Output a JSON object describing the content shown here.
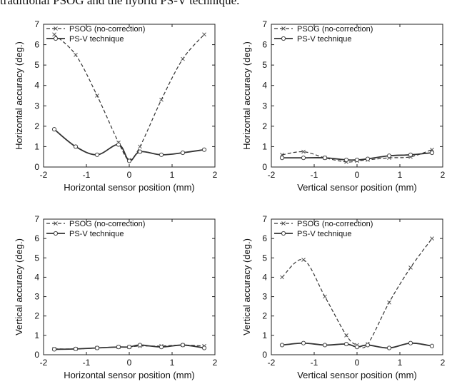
{
  "caption": "traditional PSOG and the hybrid PS-V technique.",
  "legend_labels": [
    "PSOG (no-correction)",
    "PS-V technique"
  ],
  "chart_data": [
    {
      "type": "line",
      "xlabel": "Horizontal sensor position (mm)",
      "ylabel": "Horizontal accuracy (deg.)",
      "xlim": [
        -2,
        2
      ],
      "ylim": [
        0,
        7
      ],
      "xticks": [
        -2,
        -1,
        0,
        1,
        2
      ],
      "yticks": [
        0,
        1,
        2,
        3,
        4,
        5,
        6,
        7
      ],
      "legend": "top-left",
      "grid": false,
      "series": [
        {
          "name": "PSOG (no-correction)",
          "x": [
            -1.75,
            -1.25,
            -0.75,
            -0.25,
            0,
            0.25,
            0.75,
            1.25,
            1.75
          ],
          "y": [
            6.5,
            5.5,
            3.5,
            1.2,
            0.35,
            1.0,
            3.3,
            5.3,
            6.5
          ]
        },
        {
          "name": "PS-V technique",
          "x": [
            -1.75,
            -1.25,
            -0.75,
            -0.25,
            0,
            0.25,
            0.75,
            1.25,
            1.75
          ],
          "y": [
            1.85,
            1.0,
            0.6,
            1.1,
            0.3,
            0.75,
            0.6,
            0.7,
            0.85
          ]
        }
      ]
    },
    {
      "type": "line",
      "xlabel": "Vertical sensor position (mm)",
      "ylabel": "Horizontal accuracy (deg.)",
      "xlim": [
        -2,
        2
      ],
      "ylim": [
        0,
        7
      ],
      "xticks": [
        -2,
        -1,
        0,
        1,
        2
      ],
      "yticks": [
        0,
        1,
        2,
        3,
        4,
        5,
        6,
        7
      ],
      "legend": "top-left",
      "grid": false,
      "series": [
        {
          "name": "PSOG (no-correction)",
          "x": [
            -1.75,
            -1.25,
            -0.75,
            -0.25,
            0,
            0.25,
            0.75,
            1.25,
            1.75
          ],
          "y": [
            0.6,
            0.75,
            0.45,
            0.25,
            0.3,
            0.35,
            0.45,
            0.5,
            0.85
          ]
        },
        {
          "name": "PS-V technique",
          "x": [
            -1.75,
            -1.25,
            -0.75,
            -0.25,
            0,
            0.25,
            0.75,
            1.25,
            1.75
          ],
          "y": [
            0.45,
            0.45,
            0.45,
            0.35,
            0.35,
            0.4,
            0.55,
            0.6,
            0.7
          ]
        }
      ]
    },
    {
      "type": "line",
      "xlabel": "Horizontal sensor position (mm)",
      "ylabel": "Vertical accuracy (deg.)",
      "xlim": [
        -2,
        2
      ],
      "ylim": [
        0,
        7
      ],
      "xticks": [
        -2,
        -1,
        0,
        1,
        2
      ],
      "yticks": [
        0,
        1,
        2,
        3,
        4,
        5,
        6,
        7
      ],
      "legend": "top-left",
      "grid": false,
      "series": [
        {
          "name": "PSOG (no-correction)",
          "x": [
            -1.75,
            -1.25,
            -0.75,
            -0.25,
            0,
            0.25,
            0.75,
            1.25,
            1.75
          ],
          "y": [
            0.3,
            0.3,
            0.35,
            0.4,
            0.4,
            0.45,
            0.45,
            0.5,
            0.45
          ]
        },
        {
          "name": "PS-V technique",
          "x": [
            -1.75,
            -1.25,
            -0.75,
            -0.25,
            0,
            0.25,
            0.75,
            1.25,
            1.75
          ],
          "y": [
            0.28,
            0.3,
            0.35,
            0.4,
            0.4,
            0.5,
            0.4,
            0.5,
            0.35
          ]
        }
      ]
    },
    {
      "type": "line",
      "xlabel": "Vertical sensor position (mm)",
      "ylabel": "Vertical accuracy (deg.)",
      "xlim": [
        -2,
        2
      ],
      "ylim": [
        0,
        7
      ],
      "xticks": [
        -2,
        -1,
        0,
        1,
        2
      ],
      "yticks": [
        0,
        1,
        2,
        3,
        4,
        5,
        6,
        7
      ],
      "legend": "top-left",
      "grid": false,
      "series": [
        {
          "name": "PSOG (no-correction)",
          "x": [
            -1.75,
            -1.25,
            -0.75,
            -0.25,
            0,
            0.25,
            0.75,
            1.25,
            1.75
          ],
          "y": [
            4.0,
            4.9,
            3.0,
            1.0,
            0.5,
            0.55,
            2.7,
            4.5,
            6.0
          ]
        },
        {
          "name": "PS-V technique",
          "x": [
            -1.75,
            -1.25,
            -0.75,
            -0.25,
            0,
            0.25,
            0.75,
            1.25,
            1.75
          ],
          "y": [
            0.5,
            0.6,
            0.5,
            0.55,
            0.4,
            0.5,
            0.35,
            0.6,
            0.45
          ]
        }
      ]
    }
  ]
}
